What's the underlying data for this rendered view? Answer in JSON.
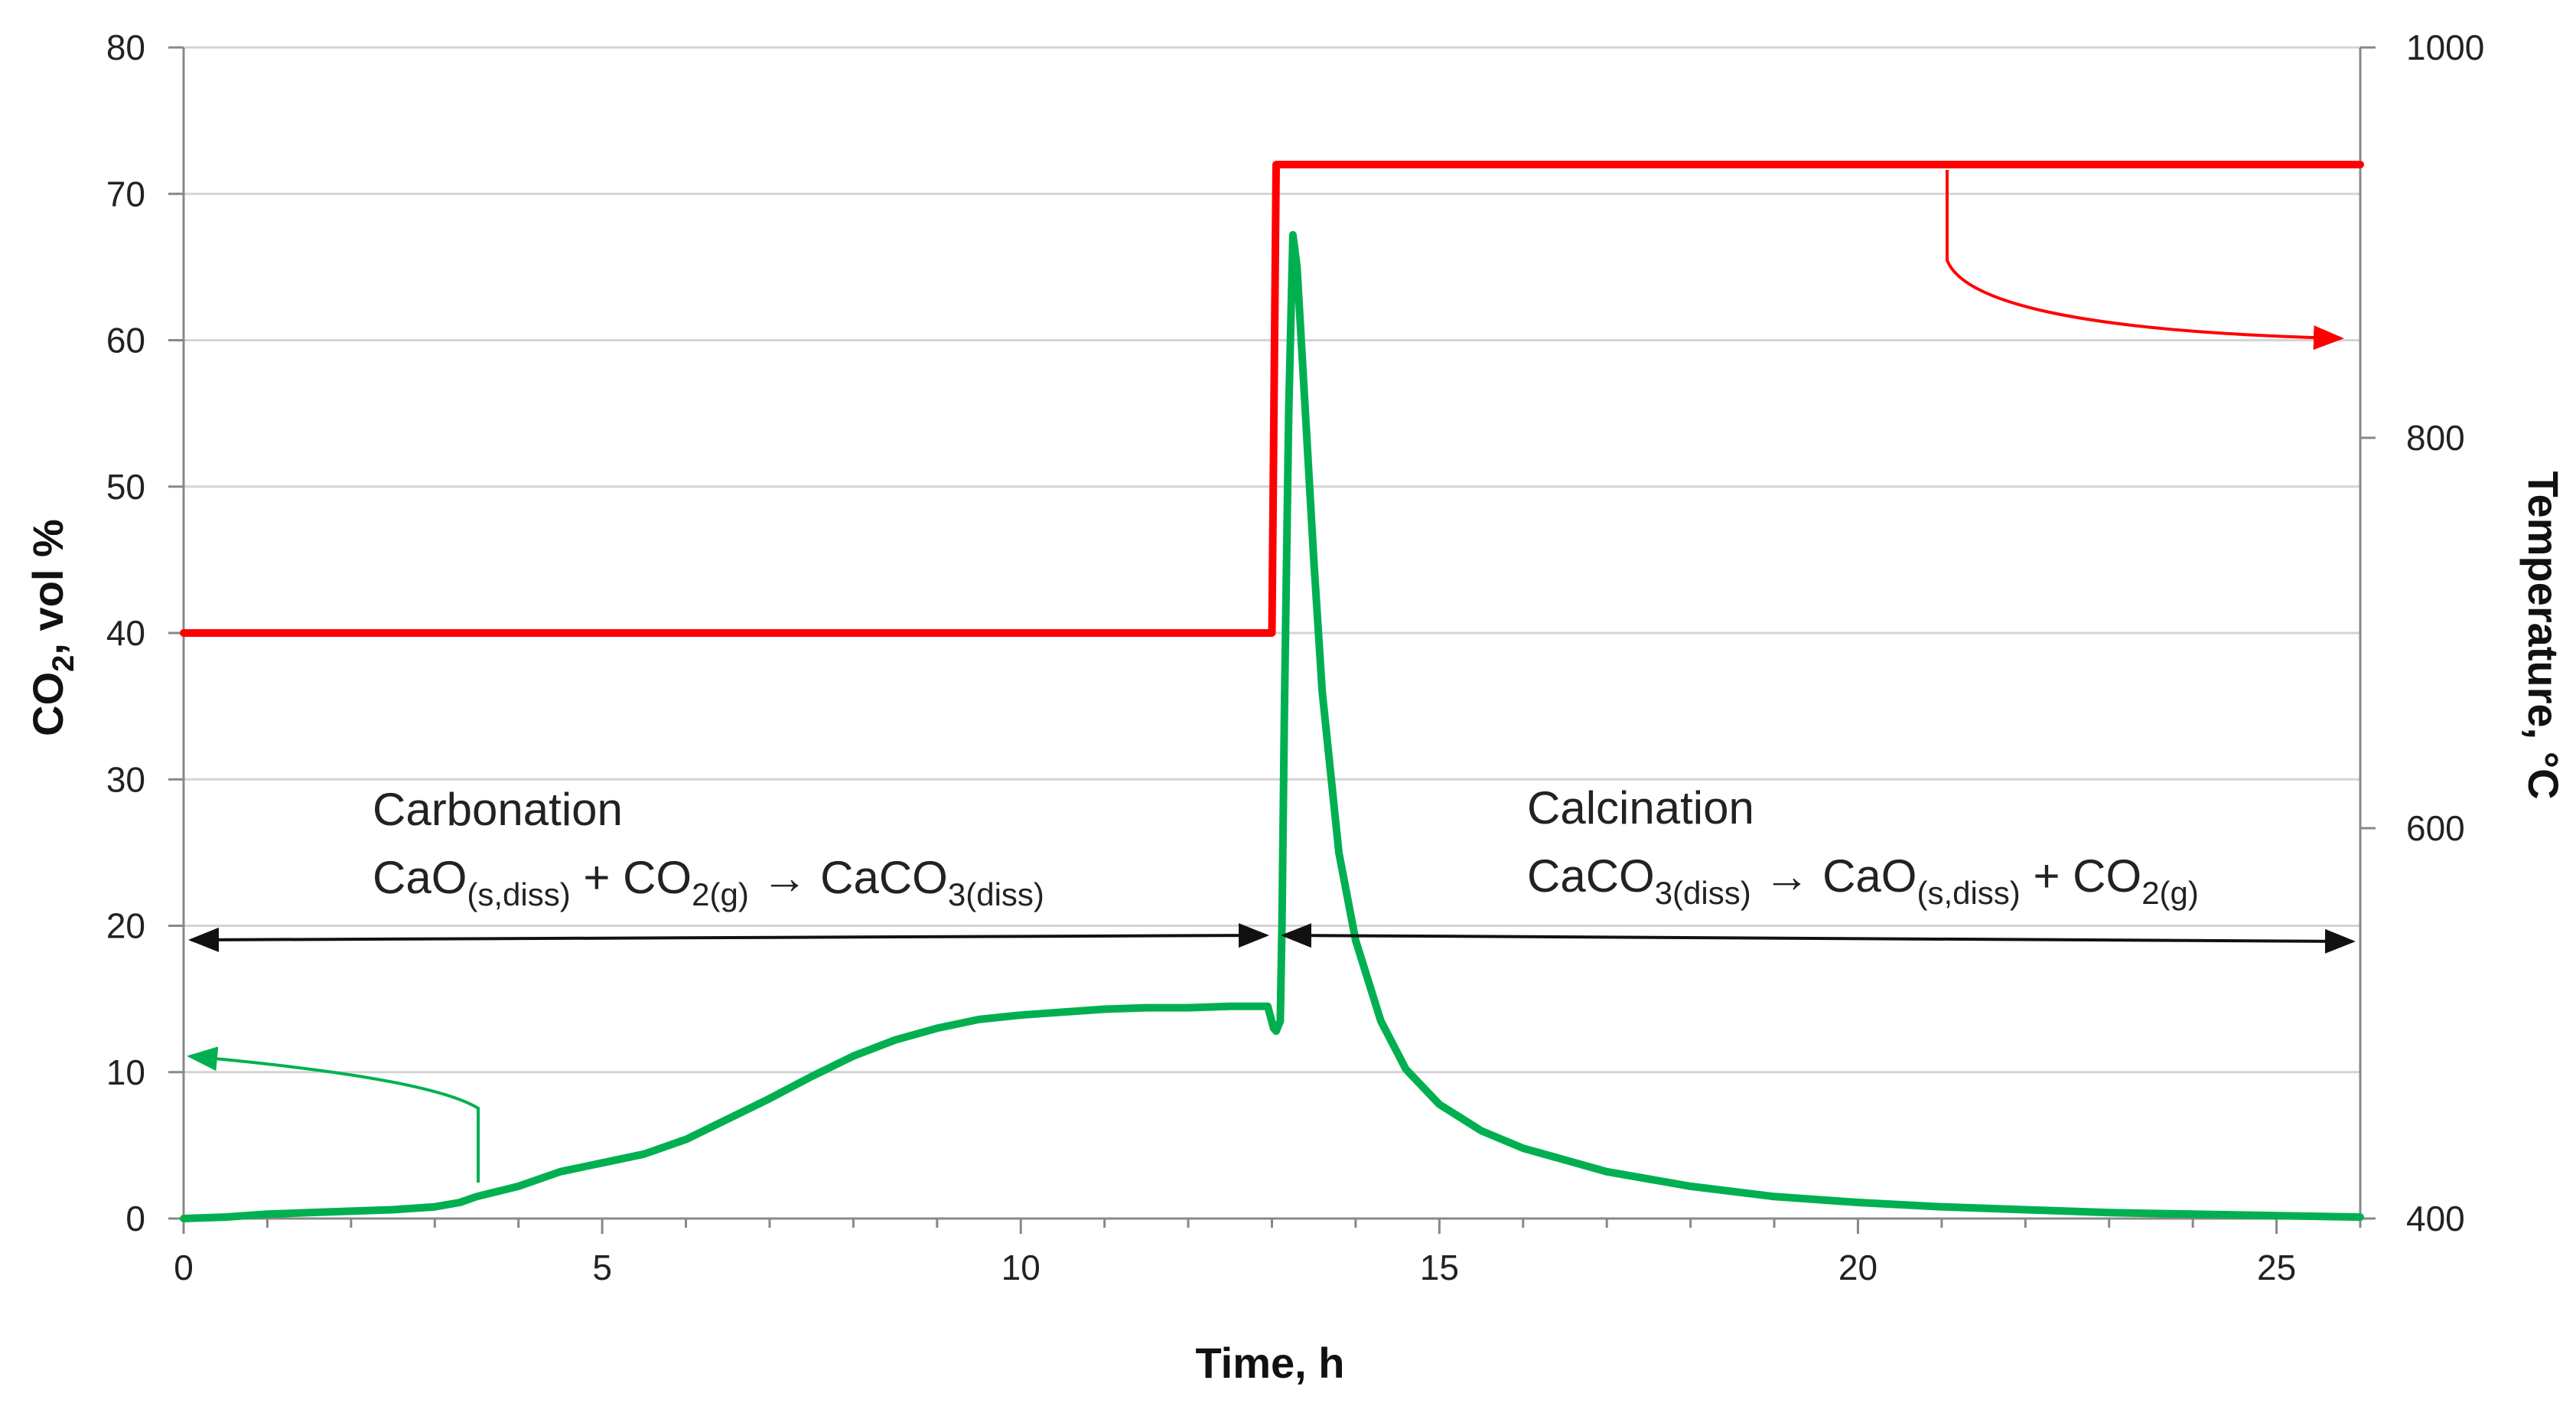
{
  "chart_data": {
    "type": "line",
    "title": "",
    "xlabel": "Time, h",
    "ylabel_left": "CO2, vol %",
    "ylabel_right": "Temperature, °C",
    "xlim": [
      0,
      26
    ],
    "ylim_left": [
      0,
      80
    ],
    "ylim_right": [
      400,
      1000
    ],
    "grid": "horizontal",
    "x_ticks": [
      "0",
      "5",
      "10",
      "15",
      "20",
      "25"
    ],
    "y_left_ticks": [
      "0",
      "10",
      "20",
      "30",
      "40",
      "50",
      "60",
      "70",
      "80"
    ],
    "y_right_ticks": [
      "400",
      "600",
      "800",
      "1000"
    ],
    "series": [
      {
        "name": "CO2",
        "axis": "left",
        "color": "#00b050",
        "points": [
          [
            0,
            0
          ],
          [
            0.5,
            0.1
          ],
          [
            1,
            0.3
          ],
          [
            1.5,
            0.4
          ],
          [
            2,
            0.5
          ],
          [
            2.5,
            0.6
          ],
          [
            3,
            0.8
          ],
          [
            3.3,
            1.1
          ],
          [
            3.5,
            1.5
          ],
          [
            4,
            2.2
          ],
          [
            4.5,
            3.2
          ],
          [
            5,
            3.8
          ],
          [
            5.5,
            4.4
          ],
          [
            6,
            5.4
          ],
          [
            6.5,
            6.8
          ],
          [
            7,
            8.2
          ],
          [
            7.5,
            9.7
          ],
          [
            8,
            11.1
          ],
          [
            8.5,
            12.2
          ],
          [
            9,
            13.0
          ],
          [
            9.5,
            13.6
          ],
          [
            10,
            13.9
          ],
          [
            10.5,
            14.1
          ],
          [
            11,
            14.3
          ],
          [
            11.5,
            14.4
          ],
          [
            12,
            14.4
          ],
          [
            12.5,
            14.5
          ],
          [
            12.95,
            14.5
          ],
          [
            13.02,
            13.0
          ],
          [
            13.05,
            12.8
          ],
          [
            13.1,
            13.5
          ],
          [
            13.12,
            20
          ],
          [
            13.15,
            35
          ],
          [
            13.2,
            55
          ],
          [
            13.25,
            67.2
          ],
          [
            13.3,
            65
          ],
          [
            13.4,
            55
          ],
          [
            13.5,
            45
          ],
          [
            13.6,
            36
          ],
          [
            13.8,
            25
          ],
          [
            14,
            19
          ],
          [
            14.3,
            13.5
          ],
          [
            14.6,
            10.2
          ],
          [
            15,
            7.8
          ],
          [
            15.5,
            6.0
          ],
          [
            16,
            4.8
          ],
          [
            17,
            3.2
          ],
          [
            18,
            2.2
          ],
          [
            19,
            1.5
          ],
          [
            20,
            1.1
          ],
          [
            21,
            0.8
          ],
          [
            22,
            0.6
          ],
          [
            23,
            0.4
          ],
          [
            24,
            0.3
          ],
          [
            25,
            0.2
          ],
          [
            26,
            0.1
          ]
        ]
      },
      {
        "name": "Temperature",
        "axis": "right",
        "color": "#ff0000",
        "points": [
          [
            0,
            700
          ],
          [
            13.0,
            700
          ],
          [
            13.05,
            940
          ],
          [
            26,
            940
          ]
        ]
      }
    ],
    "annotations": {
      "carbonation_title": "Carbonation",
      "carbonation_reaction": {
        "part1": "CaO",
        "sub1": "(s,diss)",
        "part2": " + CO",
        "sub2": "2(g)",
        "arrow": " → ",
        "part3": "CaCO",
        "sub3": "3(diss)"
      },
      "calcination_title": "Calcination",
      "calcination_reaction": {
        "part1": "CaCO",
        "sub1": "3(diss)",
        "arrow": " → ",
        "part2": "CaO",
        "sub2": "(s,diss)",
        "part3": " + CO",
        "sub3": "2(g)"
      }
    }
  }
}
